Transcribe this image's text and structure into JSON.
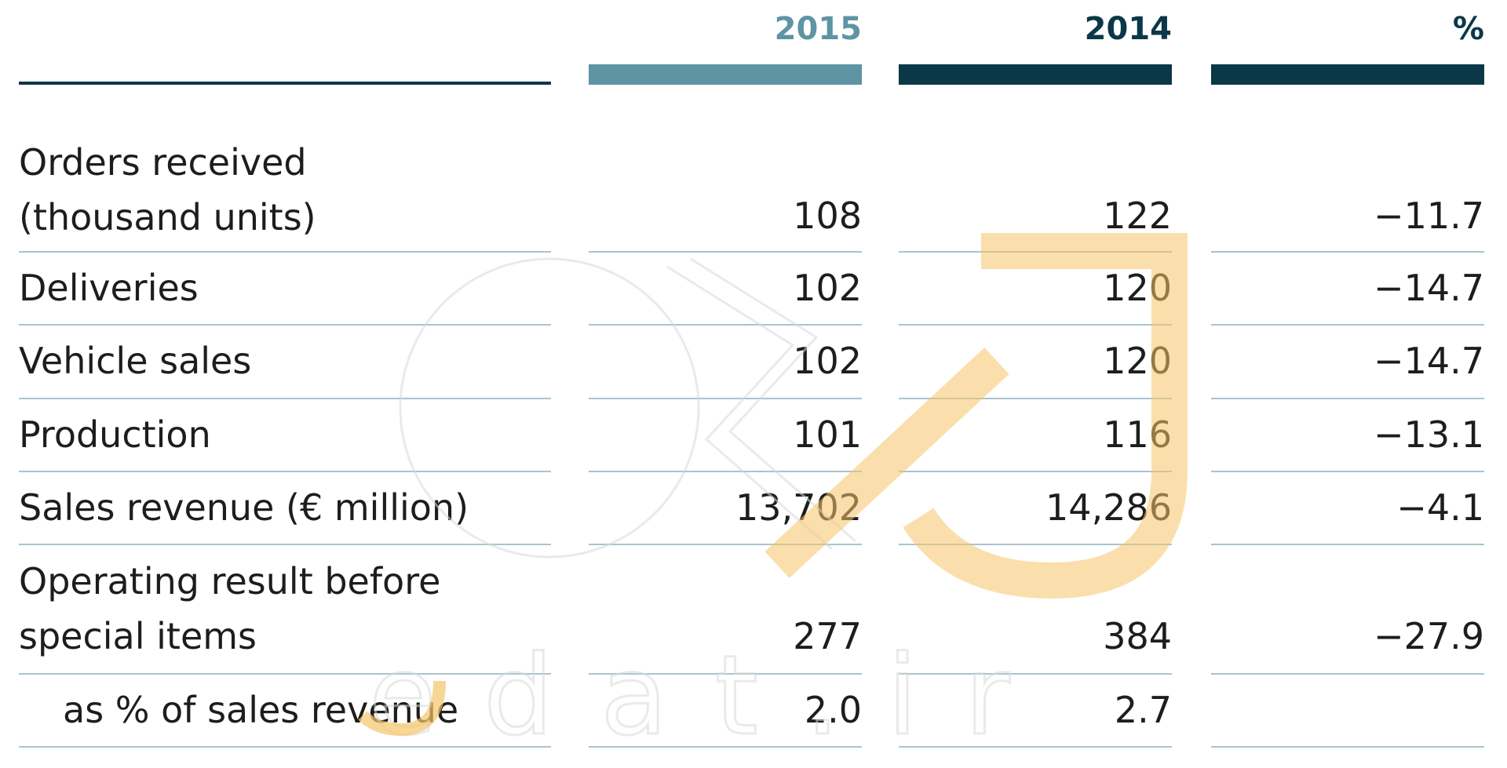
{
  "columns": {
    "c2015": {
      "label": "2015",
      "color": "#5e94a4"
    },
    "c2014": {
      "label": "2014",
      "color": "#0b3848"
    },
    "pct": {
      "label": "%",
      "color": "#0b3848"
    }
  },
  "rows": [
    {
      "label": "Orders received\n(thousand units)",
      "v2015": "108",
      "v2014": "122",
      "pct": "−11.7"
    },
    {
      "label": "Deliveries",
      "v2015": "102",
      "v2014": "120",
      "pct": "−14.7"
    },
    {
      "label": "Vehicle sales",
      "v2015": "102",
      "v2014": "120",
      "pct": "−14.7"
    },
    {
      "label": "Production",
      "v2015": "101",
      "v2014": "116",
      "pct": "−13.1"
    },
    {
      "label": "Sales revenue (€ million)",
      "v2015": "13,702",
      "v2014": "14,286",
      "pct": "−4.1"
    },
    {
      "label": "Operating result before\nspecial items",
      "v2015": "277",
      "v2014": "384",
      "pct": "−27.9"
    },
    {
      "label": "as % of sales revenue",
      "v2015": "2.0",
      "v2014": "2.7",
      "pct": ""
    }
  ],
  "watermark": {
    "text": "jedat.ir",
    "accent_color": "#f5c46a"
  }
}
